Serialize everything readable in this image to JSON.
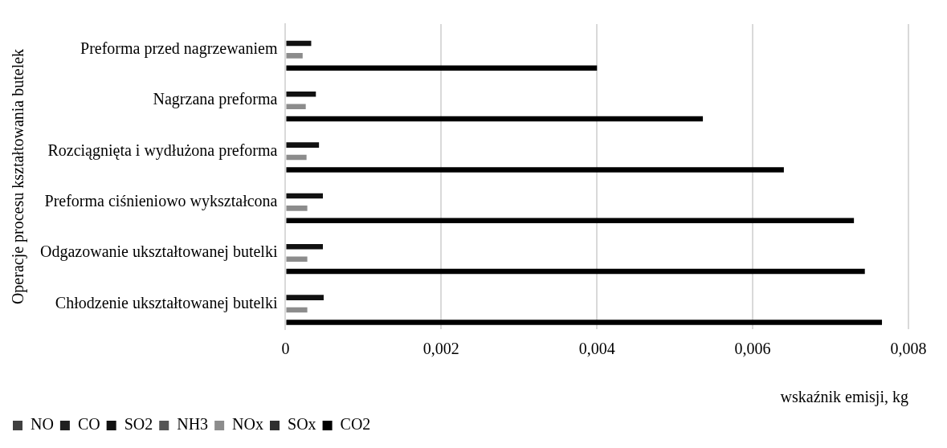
{
  "chart_data": {
    "type": "bar",
    "orientation": "horizontal",
    "ylabel": "Operacje procesu kształtowania butelek",
    "xlabel": "wskaźnik emisji, kg",
    "categories": [
      "Preforma przed nagrzewaniem",
      "Nagrzana preforma",
      "Rozciągnięta i wydłużona preforma",
      "Preforma ciśnieniowo wykształcona",
      "Odgazowanie ukształtowanej butelki",
      "Chłodzenie ukształtowanej butelki"
    ],
    "series": [
      {
        "name": "NO",
        "color": "#404040",
        "values": [
          0,
          0,
          0,
          0,
          0,
          0
        ]
      },
      {
        "name": "CO",
        "color": "#202020",
        "values": [
          0,
          0,
          0,
          0,
          0,
          0
        ]
      },
      {
        "name": "SO2",
        "color": "#111111",
        "values": [
          0.00033,
          0.00039,
          0.00043,
          0.00048,
          0.00048,
          0.00049
        ]
      },
      {
        "name": "NH3",
        "color": "#555555",
        "values": [
          0,
          0,
          0,
          0,
          0,
          0
        ]
      },
      {
        "name": "NOx",
        "color": "#8c8c8c",
        "values": [
          0.00022,
          0.00026,
          0.00027,
          0.00028,
          0.00028,
          0.00028
        ]
      },
      {
        "name": "SOx",
        "color": "#303030",
        "values": [
          0,
          0,
          0,
          0,
          0,
          0
        ]
      },
      {
        "name": "CO2",
        "color": "#000000",
        "values": [
          0.004,
          0.00536,
          0.0064,
          0.0073,
          0.00744,
          0.00766
        ]
      }
    ],
    "xlim": [
      0,
      0.008
    ],
    "xticks": [
      0,
      {
        "value": 0.002,
        "label": "0,002"
      },
      {
        "value": 0.004,
        "label": "0,004"
      },
      {
        "value": 0.006,
        "label": "0,006"
      },
      {
        "value": 0.008,
        "label": "0,008"
      }
    ],
    "grid": "x",
    "legend": "bottom left"
  }
}
